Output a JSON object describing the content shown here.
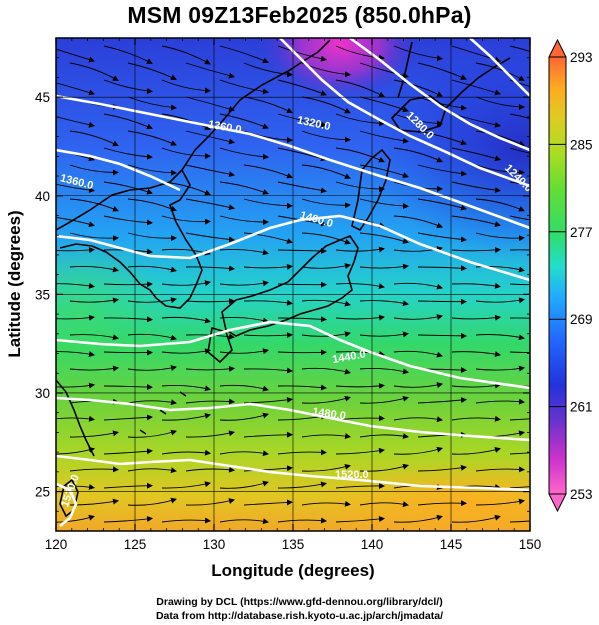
{
  "header": {
    "title": "MSM 09Z13Feb2025 (850.0hPa)"
  },
  "map": {
    "lon_range": [
      120,
      150
    ],
    "lat_range": [
      23,
      48
    ],
    "lon_ticks": [
      "120",
      "125",
      "130",
      "135",
      "140",
      "145",
      "150"
    ],
    "lat_ticks": [
      "25",
      "30",
      "35",
      "40",
      "45"
    ],
    "xlabel": "Longitude (degrees)",
    "ylabel": "Latitude  (degrees)",
    "gridlines": true
  },
  "colorbar": {
    "tick_labels": [
      "293",
      "285",
      "277",
      "269",
      "261",
      "253"
    ],
    "min": 253,
    "max": 293,
    "colors": [
      "#ff66cc",
      "#cc33cc",
      "#6633cc",
      "#2233dd",
      "#2266ff",
      "#22aaff",
      "#22ddcc",
      "#33dd66",
      "#66dd33",
      "#aadd22",
      "#ddcc22",
      "#ffaa22",
      "#ff6633"
    ]
  },
  "contours": [
    {
      "label": "1320.0"
    },
    {
      "label": "1360.0"
    },
    {
      "label": "1360.0"
    },
    {
      "label": "1280.0"
    },
    {
      "label": "1240.0"
    },
    {
      "label": "1400.0"
    },
    {
      "label": "1440.0"
    },
    {
      "label": "1480.0"
    },
    {
      "label": "1520.0"
    },
    {
      "label": "1520.0"
    }
  ],
  "footer": {
    "credit_line1": "Drawing by DCL (https://www.gfd-dennou.org/library/dcl/)",
    "credit_line2": "Data from http://database.rish.kyoto-u.ac.jp/arch/jmadata/"
  }
}
